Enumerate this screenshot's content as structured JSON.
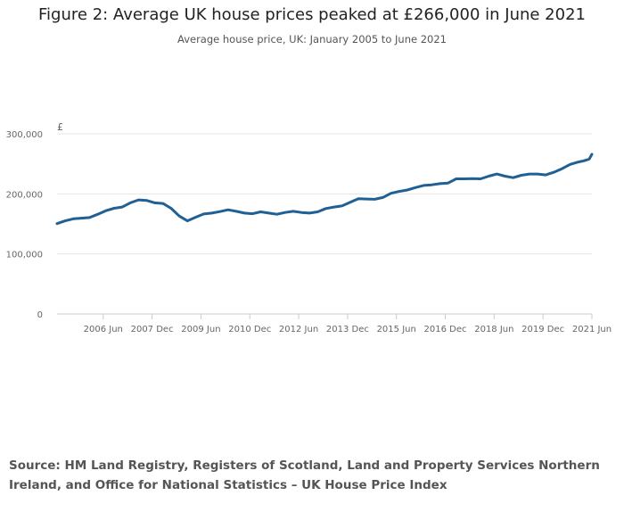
{
  "title": "Figure 2: Average UK house prices peaked at £266,000 in June 2021",
  "subtitle": "Average house price, UK: January 2005 to June 2021",
  "source": "Source: HM Land Registry, Registers of Scotland, Land and Property Services Northern Ireland, and Office for National Statistics – UK House Price Index",
  "chart_data": {
    "type": "line",
    "title": "Figure 2: Average UK house prices peaked at £266,000 in June 2021",
    "subtitle": "Average house price, UK: January 2005 to June 2021",
    "y_unit": "£",
    "ylim": [
      0,
      300000
    ],
    "y_ticks": [
      0,
      100000,
      200000,
      300000
    ],
    "y_tick_labels": [
      "0",
      "100,000",
      "200,000",
      "300,000"
    ],
    "x_ticks": [
      "2006-06",
      "2007-12",
      "2009-06",
      "2010-12",
      "2012-06",
      "2013-12",
      "2015-06",
      "2016-12",
      "2018-06",
      "2019-12",
      "2021-06"
    ],
    "x_tick_labels": [
      "2006 Jun",
      "2007 Dec",
      "2009 Jun",
      "2010 Dec",
      "2012 Jun",
      "2013 Dec",
      "2015 Jun",
      "2016 Dec",
      "2018 Jun",
      "2019 Dec",
      "2021 Jun"
    ],
    "xlim": [
      "2005-01",
      "2021-06"
    ],
    "grid": "horizontal",
    "line_color": "#206095",
    "series": [
      {
        "x": [
          "2005-01",
          "2005-04",
          "2005-07",
          "2005-10",
          "2006-01",
          "2006-04",
          "2006-07",
          "2006-10",
          "2007-01",
          "2007-04",
          "2007-07",
          "2007-10",
          "2008-01",
          "2008-04",
          "2008-07",
          "2008-10",
          "2009-01",
          "2009-04",
          "2009-07",
          "2009-10",
          "2010-01",
          "2010-04",
          "2010-07",
          "2010-10",
          "2011-01",
          "2011-04",
          "2011-07",
          "2011-10",
          "2012-01",
          "2012-04",
          "2012-07",
          "2012-10",
          "2013-01",
          "2013-04",
          "2013-07",
          "2013-10",
          "2014-01",
          "2014-04",
          "2014-07",
          "2014-10",
          "2015-01",
          "2015-04",
          "2015-07",
          "2015-10",
          "2016-01",
          "2016-04",
          "2016-07",
          "2016-10",
          "2017-01",
          "2017-04",
          "2017-07",
          "2017-10",
          "2018-01",
          "2018-04",
          "2018-07",
          "2018-10",
          "2019-01",
          "2019-04",
          "2019-07",
          "2019-10",
          "2020-01",
          "2020-04",
          "2020-07",
          "2020-10",
          "2021-01",
          "2021-03",
          "2021-05",
          "2021-06"
        ],
        "values": [
          150500,
          155000,
          158500,
          159500,
          160500,
          166000,
          172000,
          176000,
          178000,
          185000,
          190000,
          189000,
          185000,
          184000,
          176000,
          163000,
          155000,
          161000,
          166500,
          168000,
          170500,
          173500,
          171000,
          168000,
          167000,
          170000,
          168000,
          166000,
          169000,
          171000,
          169000,
          168000,
          170000,
          175500,
          178000,
          180000,
          186000,
          192000,
          191500,
          191000,
          194000,
          201000,
          204000,
          206500,
          210500,
          214000,
          215000,
          217000,
          218000,
          225000,
          225000,
          225500,
          225000,
          229500,
          233000,
          229500,
          227000,
          231000,
          233000,
          233000,
          231500,
          236000,
          242000,
          249000,
          253000,
          255000,
          258000,
          266000
        ]
      }
    ]
  }
}
